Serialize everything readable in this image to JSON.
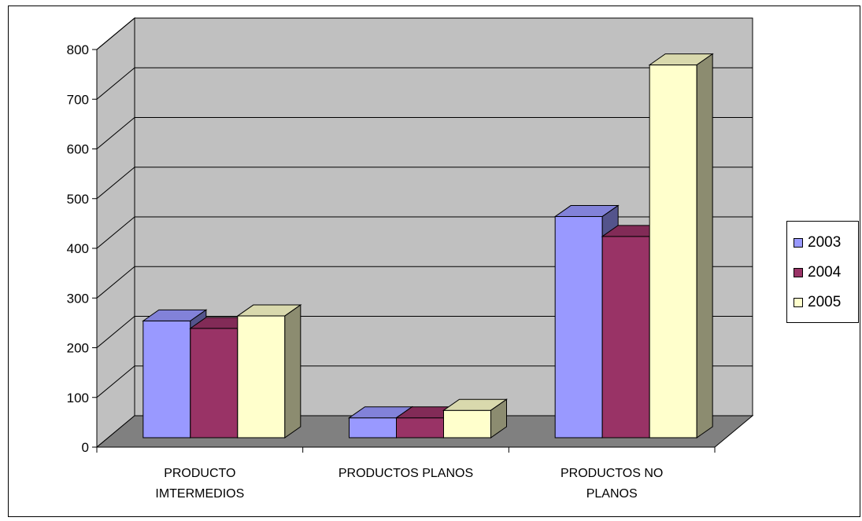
{
  "chart_data": {
    "type": "bar",
    "three_d": true,
    "categories": [
      "PRODUCTO IMTERMEDIOS",
      "PRODUCTOS PLANOS",
      "PRODUCTOS NO PLANOS"
    ],
    "category_label_lines": [
      [
        "PRODUCTO",
        "IMTERMEDIOS"
      ],
      [
        "PRODUCTOS PLANOS"
      ],
      [
        "PRODUCTOS NO",
        "PLANOS"
      ]
    ],
    "series": [
      {
        "name": "2003",
        "values": [
          235,
          40,
          445
        ],
        "color": "#9999ff"
      },
      {
        "name": "2004",
        "values": [
          220,
          40,
          405
        ],
        "color": "#993366"
      },
      {
        "name": "2005",
        "values": [
          245,
          55,
          750
        ],
        "color": "#ffffcc"
      }
    ],
    "ylim": [
      0,
      800
    ],
    "yticks": [
      "0",
      "100",
      "200",
      "300",
      "400",
      "500",
      "600",
      "700",
      "800"
    ],
    "grid": true,
    "wall_color": "#c0c0c0",
    "floor_color": "#808080",
    "legend_position": "right"
  }
}
